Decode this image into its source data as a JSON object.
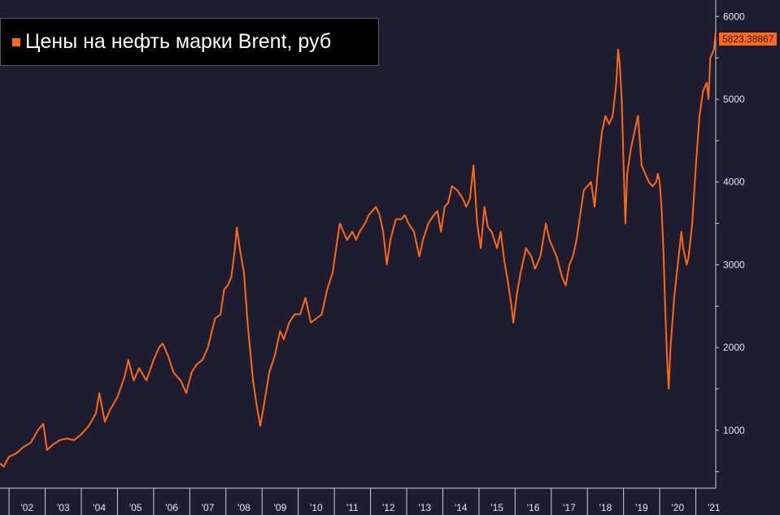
{
  "colors": {
    "background": "#1e1c30",
    "series": "#ff6a10",
    "axis": "#cfcfcf"
  },
  "legend": {
    "label": "Цены на нефть марки Brent, руб",
    "position": "top-left"
  },
  "last_value_label": "5823.38867",
  "chart_data": {
    "type": "line",
    "title": "",
    "xlabel": "",
    "ylabel": "",
    "grid": false,
    "y_axis_side": "right",
    "ylim": [
      300,
      6200
    ],
    "xlim": [
      2001.75,
      2021.55
    ],
    "y_ticks": [
      1000,
      2000,
      3000,
      4000,
      5000,
      6000
    ],
    "x_ticks": [
      {
        "label": "'02",
        "value": 2002.0
      },
      {
        "label": "'03",
        "value": 2003.0
      },
      {
        "label": "'04",
        "value": 2004.0
      },
      {
        "label": "'05",
        "value": 2005.0
      },
      {
        "label": "'06",
        "value": 2006.0
      },
      {
        "label": "'07",
        "value": 2007.0
      },
      {
        "label": "'08",
        "value": 2008.0
      },
      {
        "label": "'09",
        "value": 2009.0
      },
      {
        "label": "'10",
        "value": 2010.0
      },
      {
        "label": "'11",
        "value": 2011.0
      },
      {
        "label": "'12",
        "value": 2012.0
      },
      {
        "label": "'13",
        "value": 2013.0
      },
      {
        "label": "'14",
        "value": 2014.0
      },
      {
        "label": "'15",
        "value": 2015.0
      },
      {
        "label": "'16",
        "value": 2016.0
      },
      {
        "label": "'17",
        "value": 2017.0
      },
      {
        "label": "'18",
        "value": 2018.0
      },
      {
        "label": "'19",
        "value": 2019.0
      },
      {
        "label": "'20",
        "value": 2020.0
      },
      {
        "label": "'21",
        "value": 2021.0
      }
    ],
    "series": [
      {
        "name": "Цены на нефть марки Brent, руб",
        "points": [
          [
            2001.75,
            600
          ],
          [
            2001.85,
            560
          ],
          [
            2002.0,
            680
          ],
          [
            2002.2,
            720
          ],
          [
            2002.4,
            800
          ],
          [
            2002.6,
            850
          ],
          [
            2002.8,
            1000
          ],
          [
            2002.95,
            1080
          ],
          [
            2003.05,
            760
          ],
          [
            2003.2,
            820
          ],
          [
            2003.4,
            880
          ],
          [
            2003.6,
            900
          ],
          [
            2003.8,
            880
          ],
          [
            2004.0,
            950
          ],
          [
            2004.2,
            1050
          ],
          [
            2004.4,
            1200
          ],
          [
            2004.5,
            1450
          ],
          [
            2004.65,
            1100
          ],
          [
            2004.8,
            1250
          ],
          [
            2005.0,
            1400
          ],
          [
            2005.2,
            1650
          ],
          [
            2005.3,
            1850
          ],
          [
            2005.45,
            1600
          ],
          [
            2005.6,
            1750
          ],
          [
            2005.8,
            1600
          ],
          [
            2006.0,
            1850
          ],
          [
            2006.15,
            2000
          ],
          [
            2006.25,
            2050
          ],
          [
            2006.4,
            1900
          ],
          [
            2006.55,
            1700
          ],
          [
            2006.75,
            1600
          ],
          [
            2006.9,
            1450
          ],
          [
            2007.05,
            1700
          ],
          [
            2007.2,
            1800
          ],
          [
            2007.35,
            1850
          ],
          [
            2007.5,
            2000
          ],
          [
            2007.7,
            2350
          ],
          [
            2007.85,
            2400
          ],
          [
            2007.95,
            2700
          ],
          [
            2008.05,
            2750
          ],
          [
            2008.15,
            2850
          ],
          [
            2008.25,
            3200
          ],
          [
            2008.3,
            3450
          ],
          [
            2008.4,
            3150
          ],
          [
            2008.5,
            2900
          ],
          [
            2008.6,
            2300
          ],
          [
            2008.75,
            1600
          ],
          [
            2008.85,
            1300
          ],
          [
            2008.95,
            1050
          ],
          [
            2009.05,
            1300
          ],
          [
            2009.2,
            1700
          ],
          [
            2009.35,
            1900
          ],
          [
            2009.5,
            2200
          ],
          [
            2009.6,
            2100
          ],
          [
            2009.75,
            2300
          ],
          [
            2009.9,
            2400
          ],
          [
            2010.05,
            2400
          ],
          [
            2010.2,
            2600
          ],
          [
            2010.35,
            2300
          ],
          [
            2010.5,
            2350
          ],
          [
            2010.65,
            2400
          ],
          [
            2010.8,
            2700
          ],
          [
            2010.95,
            2900
          ],
          [
            2011.05,
            3200
          ],
          [
            2011.15,
            3500
          ],
          [
            2011.25,
            3400
          ],
          [
            2011.35,
            3300
          ],
          [
            2011.5,
            3400
          ],
          [
            2011.6,
            3300
          ],
          [
            2011.7,
            3400
          ],
          [
            2011.85,
            3500
          ],
          [
            2011.95,
            3600
          ],
          [
            2012.05,
            3650
          ],
          [
            2012.15,
            3700
          ],
          [
            2012.25,
            3600
          ],
          [
            2012.35,
            3400
          ],
          [
            2012.45,
            3000
          ],
          [
            2012.55,
            3300
          ],
          [
            2012.7,
            3550
          ],
          [
            2012.85,
            3550
          ],
          [
            2012.95,
            3600
          ],
          [
            2013.05,
            3500
          ],
          [
            2013.2,
            3400
          ],
          [
            2013.35,
            3100
          ],
          [
            2013.45,
            3300
          ],
          [
            2013.6,
            3500
          ],
          [
            2013.75,
            3600
          ],
          [
            2013.85,
            3650
          ],
          [
            2013.95,
            3400
          ],
          [
            2014.05,
            3700
          ],
          [
            2014.15,
            3750
          ],
          [
            2014.25,
            3950
          ],
          [
            2014.4,
            3900
          ],
          [
            2014.55,
            3800
          ],
          [
            2014.65,
            3700
          ],
          [
            2014.75,
            3800
          ],
          [
            2014.85,
            4200
          ],
          [
            2014.95,
            3500
          ],
          [
            2015.05,
            3200
          ],
          [
            2015.15,
            3700
          ],
          [
            2015.25,
            3450
          ],
          [
            2015.35,
            3400
          ],
          [
            2015.5,
            3200
          ],
          [
            2015.6,
            3400
          ],
          [
            2015.7,
            3050
          ],
          [
            2015.8,
            2800
          ],
          [
            2015.9,
            2500
          ],
          [
            2015.95,
            2300
          ],
          [
            2016.05,
            2650
          ],
          [
            2016.15,
            2900
          ],
          [
            2016.3,
            3200
          ],
          [
            2016.45,
            3100
          ],
          [
            2016.55,
            2950
          ],
          [
            2016.7,
            3100
          ],
          [
            2016.85,
            3500
          ],
          [
            2016.95,
            3300
          ],
          [
            2017.05,
            3200
          ],
          [
            2017.15,
            3100
          ],
          [
            2017.3,
            2850
          ],
          [
            2017.4,
            2750
          ],
          [
            2017.5,
            3000
          ],
          [
            2017.6,
            3100
          ],
          [
            2017.7,
            3300
          ],
          [
            2017.8,
            3600
          ],
          [
            2017.9,
            3900
          ],
          [
            2018.0,
            3950
          ],
          [
            2018.1,
            4000
          ],
          [
            2018.2,
            3700
          ],
          [
            2018.3,
            4200
          ],
          [
            2018.4,
            4600
          ],
          [
            2018.5,
            4800
          ],
          [
            2018.6,
            4700
          ],
          [
            2018.7,
            4800
          ],
          [
            2018.8,
            5200
          ],
          [
            2018.85,
            5600
          ],
          [
            2018.9,
            5400
          ],
          [
            2018.95,
            5000
          ],
          [
            2019.0,
            4200
          ],
          [
            2019.05,
            3500
          ],
          [
            2019.1,
            4100
          ],
          [
            2019.2,
            4400
          ],
          [
            2019.3,
            4600
          ],
          [
            2019.4,
            4800
          ],
          [
            2019.5,
            4200
          ],
          [
            2019.6,
            4100
          ],
          [
            2019.7,
            4000
          ],
          [
            2019.8,
            3950
          ],
          [
            2019.9,
            4000
          ],
          [
            2019.95,
            4100
          ],
          [
            2020.0,
            4000
          ],
          [
            2020.05,
            3700
          ],
          [
            2020.1,
            3200
          ],
          [
            2020.15,
            2500
          ],
          [
            2020.2,
            1900
          ],
          [
            2020.25,
            1500
          ],
          [
            2020.3,
            2000
          ],
          [
            2020.4,
            2600
          ],
          [
            2020.5,
            3000
          ],
          [
            2020.6,
            3400
          ],
          [
            2020.65,
            3200
          ],
          [
            2020.75,
            3000
          ],
          [
            2020.8,
            3100
          ],
          [
            2020.9,
            3500
          ],
          [
            2021.0,
            4200
          ],
          [
            2021.1,
            4800
          ],
          [
            2021.2,
            5100
          ],
          [
            2021.3,
            5200
          ],
          [
            2021.35,
            5000
          ],
          [
            2021.4,
            5500
          ],
          [
            2021.5,
            5600
          ],
          [
            2021.55,
            5823.38867
          ]
        ]
      }
    ]
  }
}
